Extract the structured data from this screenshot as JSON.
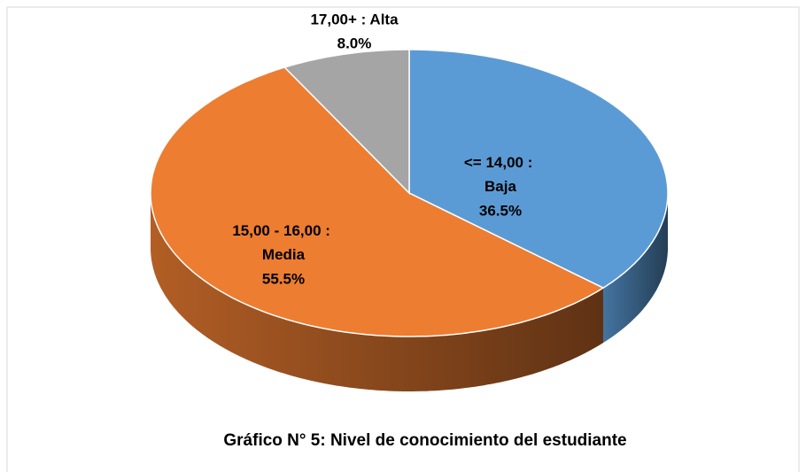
{
  "chart_data": {
    "type": "pie",
    "title": "Gráfico N° 5: Nivel de conocimiento del estudiante",
    "categories": [
      "<= 14,00 : Baja",
      "15,00 - 16,00 : Media",
      "17,00+ : Alta"
    ],
    "values": [
      36.5,
      55.5,
      8.0
    ],
    "value_labels": [
      "36.5%",
      "55.5%",
      "8.0%"
    ],
    "colors": [
      "#5b9bd5",
      "#ed7d31",
      "#a5a5a5"
    ]
  }
}
